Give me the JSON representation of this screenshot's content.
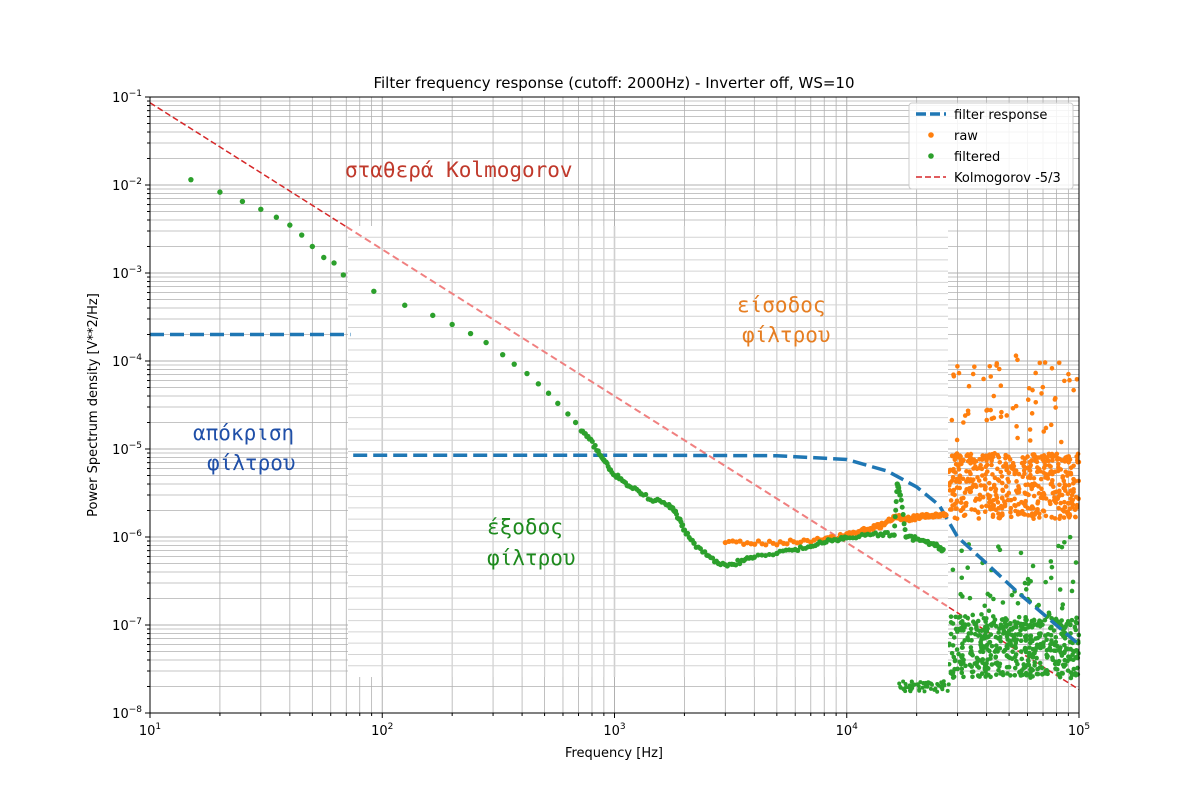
{
  "chart_data": {
    "type": "scatter",
    "title": "Filter frequency response (cutoff: 2000Hz) -  Inverter off, WS=10",
    "xlabel": "Frequency [Hz]",
    "ylabel": "Power Spectrum density [V**2/Hz]",
    "xscale": "log",
    "yscale": "log",
    "xlim": [
      10,
      100000
    ],
    "ylim": [
      1e-08,
      0.1
    ],
    "grid": "major and minor",
    "legend_position": "top-right",
    "x_ticks": [
      {
        "base": "10",
        "exp": "1"
      },
      {
        "base": "10",
        "exp": "2"
      },
      {
        "base": "10",
        "exp": "3"
      },
      {
        "base": "10",
        "exp": "4"
      },
      {
        "base": "10",
        "exp": "5"
      }
    ],
    "y_ticks": [
      {
        "base": "10",
        "exp": "−8"
      },
      {
        "base": "10",
        "exp": "−7"
      },
      {
        "base": "10",
        "exp": "−6"
      },
      {
        "base": "10",
        "exp": "−5"
      },
      {
        "base": "10",
        "exp": "−4"
      },
      {
        "base": "10",
        "exp": "−3"
      },
      {
        "base": "10",
        "exp": "−2"
      },
      {
        "base": "10",
        "exp": "−1"
      }
    ],
    "series": [
      {
        "name": "filter response",
        "kind": "dashed-line",
        "color": "#1f77b4",
        "points": [
          [
            10,
            0.0002
          ],
          [
            73,
            0.0002
          ]
        ],
        "inset_points": [
          [
            75,
            8.5e-06
          ],
          [
            1000,
            8.5e-06
          ],
          [
            5000,
            8.4e-06
          ],
          [
            10000,
            7.6e-06
          ],
          [
            15000,
            5.6e-06
          ],
          [
            20000,
            3.7e-06
          ],
          [
            25000,
            2.3e-06
          ],
          [
            30000,
            1e-06
          ],
          [
            40000,
            5e-07
          ],
          [
            55000,
            2.3e-07
          ],
          [
            75000,
            1.15e-07
          ],
          [
            100000,
            6e-08
          ]
        ]
      },
      {
        "name": "raw",
        "kind": "points",
        "color": "#ff7f0e",
        "points": [
          [
            3000,
            8.5e-07
          ],
          [
            5000,
            8.6e-07
          ],
          [
            8000,
            9.3e-07
          ],
          [
            10000,
            1.05e-06
          ],
          [
            12000,
            1.2e-06
          ],
          [
            14000,
            1.35e-06
          ],
          [
            16500,
            1.7e-06
          ],
          [
            18000,
            1.6e-06
          ],
          [
            21000,
            1.7e-06
          ],
          [
            24000,
            1.75e-06
          ],
          [
            27000,
            1.8e-06
          ]
        ]
      },
      {
        "name": "filtered",
        "kind": "points",
        "color": "#2ca02c",
        "points": [
          [
            15,
            0.0115
          ],
          [
            20,
            0.0083
          ],
          [
            25,
            0.0065
          ],
          [
            30,
            0.0053
          ],
          [
            35,
            0.0043
          ],
          [
            40,
            0.0035
          ],
          [
            45,
            0.0027
          ],
          [
            50,
            0.002
          ],
          [
            56,
            0.0015
          ],
          [
            62,
            0.0013
          ],
          [
            68,
            0.00095
          ],
          [
            92,
            0.00062
          ],
          [
            125,
            0.00043
          ],
          [
            165,
            0.00033
          ],
          [
            200,
            0.00026
          ],
          [
            240,
            0.000205
          ],
          [
            280,
            0.000162
          ],
          [
            330,
            0.000118
          ],
          [
            370,
            9.2e-05
          ],
          [
            420,
            7.2e-05
          ],
          [
            470,
            5.5e-05
          ],
          [
            520,
            4.3e-05
          ],
          [
            570,
            3.3e-05
          ],
          [
            630,
            2.5e-05
          ],
          [
            680,
            2e-05
          ],
          [
            720,
            1.6e-05
          ],
          [
            780,
            1.3e-05
          ],
          [
            850,
            9.5e-06
          ],
          [
            900,
            7.5e-06
          ],
          [
            960,
            5.8e-06
          ],
          [
            1050,
            4.6e-06
          ],
          [
            1150,
            3.8e-06
          ],
          [
            1300,
            3.1e-06
          ],
          [
            1500,
            2.6e-06
          ],
          [
            1700,
            2.3e-06
          ],
          [
            1800,
            2e-06
          ],
          [
            1900,
            1.6e-06
          ],
          [
            2000,
            1.2e-06
          ],
          [
            2200,
            8.5e-07
          ],
          [
            2500,
            6.2e-07
          ],
          [
            2800,
            5e-07
          ],
          [
            3200,
            4.9e-07
          ],
          [
            3600,
            5.4e-07
          ],
          [
            4000,
            5.9e-07
          ],
          [
            5000,
            6.5e-07
          ],
          [
            6000,
            7.2e-07
          ],
          [
            7000,
            7.8e-07
          ],
          [
            8000,
            8.6e-07
          ],
          [
            9000,
            9.3e-07
          ],
          [
            10000,
            9.8e-07
          ],
          [
            12000,
            1.05e-06
          ],
          [
            14000,
            1.08e-06
          ],
          [
            16000,
            1.05e-06
          ],
          [
            18000,
            1e-06
          ],
          [
            20000,
            9.5e-07
          ],
          [
            22000,
            8.8e-07
          ],
          [
            24000,
            8e-07
          ],
          [
            26000,
            7.2e-07
          ],
          [
            17000,
            3e-06
          ],
          [
            16500,
            4e-06
          ]
        ]
      },
      {
        "name": "Kolmogorov -5/3",
        "kind": "dashed-line",
        "color": "#d62728",
        "points": [
          [
            10,
            0.086
          ],
          [
            100000,
            1.85e-08
          ]
        ]
      }
    ],
    "annotations": [
      {
        "text": "σταθερά Kolmogorov",
        "color": "#c0392b"
      },
      {
        "text": "είσοδος",
        "color": "#e67e22"
      },
      {
        "text": "φίλτρου",
        "color": "#e67e22"
      },
      {
        "text": "απόκριση",
        "color": "#1f4fa8"
      },
      {
        "text": "φίλτρου",
        "color": "#1f4fa8"
      },
      {
        "text": "έξοδος",
        "color": "#1e8a1e"
      },
      {
        "text": "φίλτρου",
        "color": "#1e8a1e"
      }
    ]
  }
}
